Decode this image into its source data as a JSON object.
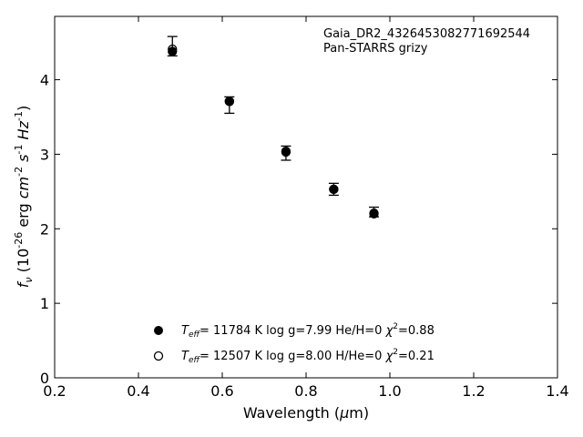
{
  "chart_data": {
    "type": "scatter",
    "annotation_lines": [
      "Gaia_DR2_4326453082771692544",
      "Pan-STARRS grizy"
    ],
    "xlabel": "Wavelength (μm)",
    "ylabel": "f_ν (10^-26 erg cm^-2 s^-1 Hz^-1)",
    "xlim": [
      0.2,
      1.4
    ],
    "ylim": [
      0,
      4.85
    ],
    "xticks": [
      0.2,
      0.4,
      0.6,
      0.8,
      1.0,
      1.2,
      1.4
    ],
    "xtick_labels": [
      "0.2",
      "0.4",
      "0.6",
      "0.8",
      "1.0",
      "1.2",
      "1.4"
    ],
    "yticks": [
      0,
      1,
      2,
      3,
      4
    ],
    "ytick_labels": [
      "0",
      "1",
      "2",
      "3",
      "4"
    ],
    "grid": false,
    "legend_position": "bottom-center",
    "observed": {
      "x": [
        0.481,
        0.617,
        0.752,
        0.866,
        0.962
      ],
      "y": [
        4.44,
        3.66,
        3.02,
        2.53,
        2.22
      ],
      "yerr_low": [
        0.12,
        0.11,
        0.1,
        0.08,
        0.06
      ],
      "yerr_high": [
        0.14,
        0.11,
        0.09,
        0.08,
        0.07
      ]
    },
    "series": [
      {
        "marker": "filled",
        "legend": {
          "teff_symbol": "T",
          "teff_sub": "eff",
          "teff_text": "= 11784 K  log g=7.99  He/H=0  ",
          "chi_symbol": "χ",
          "chi_sup": "2",
          "chi_text": "=0.88"
        },
        "x": [
          0.481,
          0.617,
          0.752,
          0.866,
          0.962
        ],
        "y": [
          4.38,
          3.71,
          3.04,
          2.53,
          2.2
        ]
      },
      {
        "marker": "open",
        "legend": {
          "teff_symbol": "T",
          "teff_sub": "eff",
          "teff_text": "= 12507 K  log g=8.00  H/He=0  ",
          "chi_symbol": "χ",
          "chi_sup": "2",
          "chi_text": "=0.21"
        },
        "x": [
          0.481,
          0.617,
          0.752,
          0.866,
          0.962
        ],
        "y": [
          4.41,
          3.71,
          3.03,
          2.53,
          2.21
        ]
      }
    ],
    "colors": {
      "marker": "#000000",
      "axes": "#000000",
      "background": "#ffffff"
    }
  }
}
